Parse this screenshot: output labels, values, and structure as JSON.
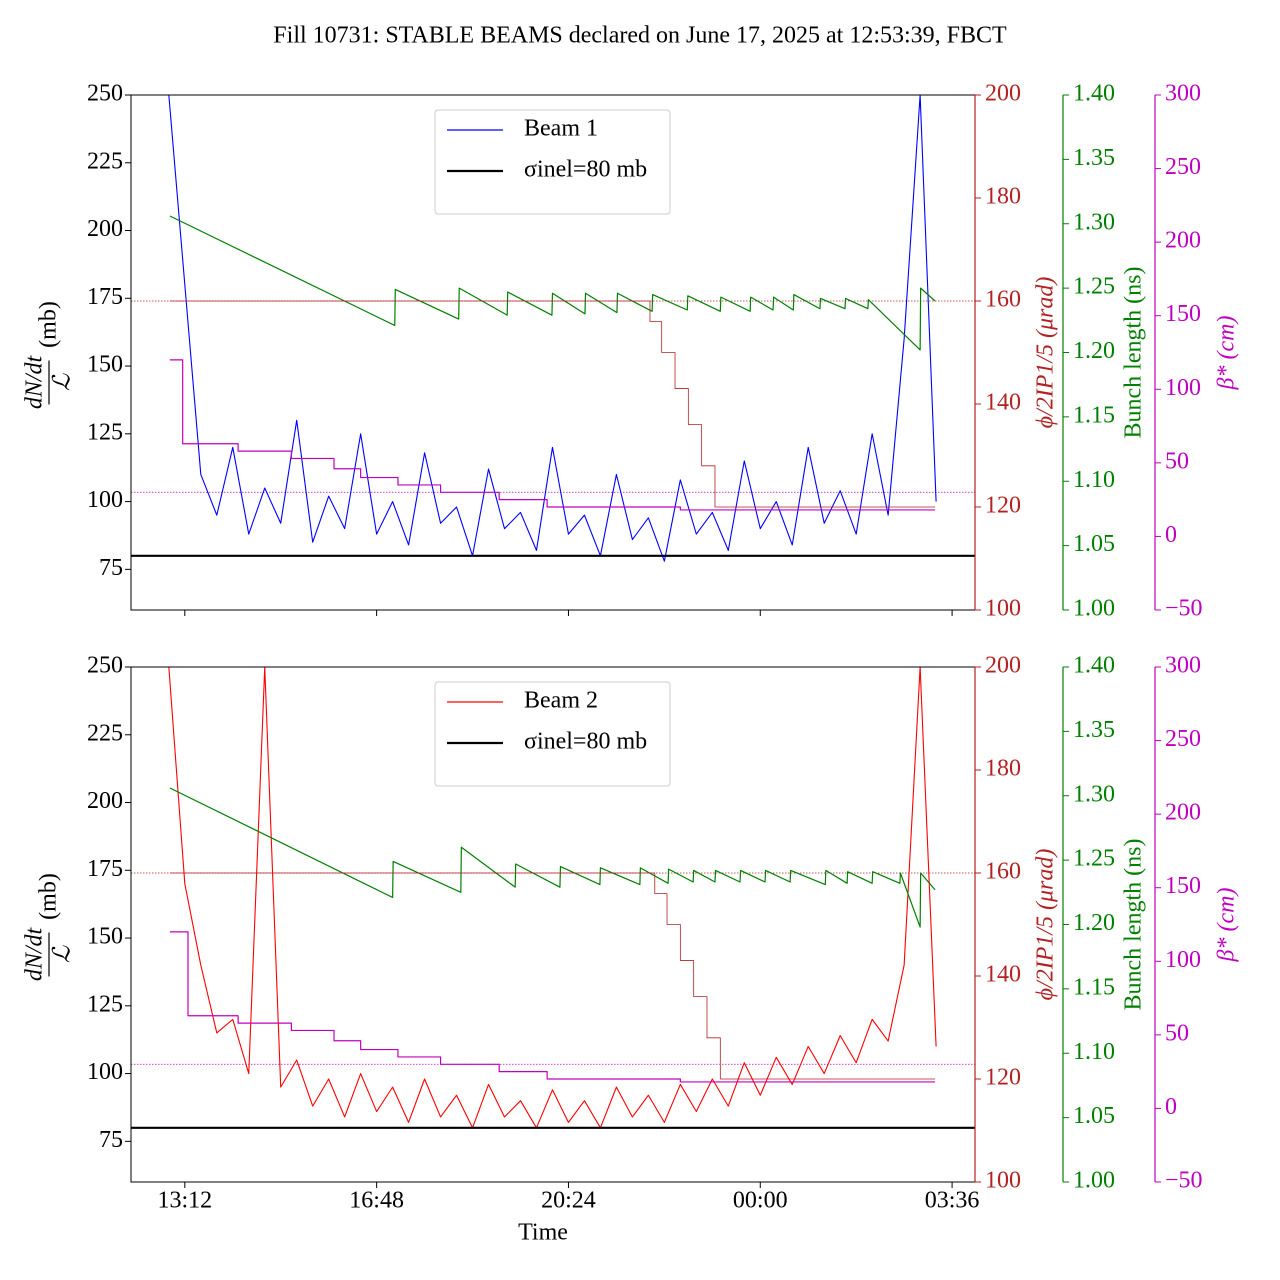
{
  "title": "Fill 10731: STABLE BEAMS declared on June 17, 2025 at 12:53:39, FBCT",
  "chart_data": [
    {
      "type": "line",
      "xlim": [
        12.19,
        28.03
      ],
      "xticks": [
        13.2,
        16.8,
        20.4,
        24,
        27.6
      ],
      "ylim": [
        60,
        250
      ],
      "yticks": [
        75,
        100,
        125,
        150,
        175,
        200,
        225,
        250
      ],
      "ylabel": {
        "numerator": "dN/dt",
        "denominator": "ℒ",
        "unit": "(mb)"
      },
      "y2lim": [
        100,
        200
      ],
      "y2ticks": [
        100,
        120,
        140,
        160,
        180,
        200
      ],
      "y2label": "ϕ/2IP1/5 (μrad)",
      "y2color": "#b22222",
      "y3lim": [
        1.0,
        1.4
      ],
      "y3ticks": [
        {
          "value": 1.0,
          "label": "1.00"
        },
        1.05,
        {
          "value": 1.1,
          "label": "1.10"
        },
        1.15,
        {
          "value": 1.2,
          "label": "1.20"
        },
        1.25,
        {
          "value": 1.3,
          "label": "1.30"
        },
        1.35,
        {
          "value": 1.4,
          "label": "1.40"
        }
      ],
      "y3label": "Bunch length (ns)",
      "y3color": "#008000",
      "y4lim": [
        -50,
        300
      ],
      "y4ticks": [
        {
          "value": -50,
          "label": "−50"
        },
        0,
        50,
        100,
        150,
        200,
        250,
        300
      ],
      "y4label": "β* (cm)",
      "y4color": "#c000c0",
      "legend": "upper center",
      "hlines": [
        {
          "axis": "y2",
          "value": 160,
          "color": "#b22222"
        },
        {
          "axis": "y4",
          "value": 30,
          "color": "#c000c0"
        }
      ],
      "series": [
        {
          "name": "Beam 1",
          "color": "#0000ff",
          "axis": "y",
          "x": [
            12.9,
            13.2,
            13.5,
            13.8,
            14.1,
            14.4,
            14.7,
            15.0,
            15.3,
            15.6,
            15.9,
            16.2,
            16.5,
            16.8,
            17.1,
            17.4,
            17.7,
            18.0,
            18.3,
            18.6,
            18.9,
            19.2,
            19.5,
            19.8,
            20.1,
            20.4,
            20.7,
            21.0,
            21.3,
            21.6,
            21.9,
            22.2,
            22.5,
            22.8,
            23.1,
            23.4,
            23.7,
            24.0,
            24.3,
            24.6,
            24.9,
            25.2,
            25.5,
            25.8,
            26.1,
            26.4,
            26.7,
            27.0,
            27.3
          ],
          "values": [
            250,
            180,
            110,
            95,
            120,
            88,
            105,
            92,
            130,
            85,
            102,
            90,
            125,
            88,
            100,
            84,
            118,
            92,
            98,
            80,
            112,
            90,
            96,
            82,
            120,
            88,
            95,
            80,
            110,
            86,
            94,
            78,
            108,
            88,
            96,
            82,
            115,
            90,
            100,
            84,
            120,
            92,
            104,
            88,
            125,
            95,
            160,
            250,
            100
          ]
        },
        {
          "name": "σinel=80 mb",
          "color": "#000000",
          "axis": "y",
          "hline": 80
        },
        {
          "color": "#008000",
          "axis": "y3",
          "x": [
            12.92,
            17.14,
            17.15,
            18.34,
            18.35,
            19.25,
            19.26,
            20.09,
            20.1,
            20.71,
            20.72,
            21.31,
            21.32,
            21.97,
            21.98,
            22.63,
            22.64,
            23.25,
            23.26,
            23.81,
            23.82,
            24.24,
            24.25,
            24.62,
            24.63,
            25.12,
            25.13,
            25.59,
            25.6,
            26.02,
            26.03,
            27.0,
            27.01,
            27.28
          ],
          "values": [
            1.306,
            1.221,
            1.249,
            1.226,
            1.25,
            1.229,
            1.247,
            1.229,
            1.246,
            1.23,
            1.246,
            1.231,
            1.246,
            1.232,
            1.245,
            1.233,
            1.244,
            1.232,
            1.243,
            1.232,
            1.243,
            1.233,
            1.243,
            1.233,
            1.245,
            1.234,
            1.242,
            1.234,
            1.242,
            1.234,
            1.241,
            1.202,
            1.25,
            1.24
          ]
        },
        {
          "color": "#c000c0",
          "axis": "y4",
          "x": [
            12.92,
            13.16,
            13.16,
            14.2,
            14.2,
            15.2,
            15.2,
            16.0,
            16.0,
            16.5,
            16.5,
            17.2,
            17.2,
            18.0,
            18.0,
            19.1,
            19.1,
            20.0,
            20.0,
            22.5,
            22.5,
            27.28
          ],
          "values": [
            120,
            120,
            63,
            63,
            58,
            58,
            53,
            53,
            46,
            46,
            40,
            40,
            35,
            35,
            30,
            30,
            25,
            25,
            20,
            20,
            18,
            18
          ]
        },
        {
          "color": "#b22222",
          "axis": "y2",
          "x": [
            12.92,
            21.93,
            21.93,
            22.15,
            22.15,
            22.4,
            22.4,
            22.65,
            22.65,
            22.9,
            22.9,
            23.15,
            23.15,
            27.28
          ],
          "values": [
            160,
            160,
            156,
            156,
            150,
            150,
            143,
            143,
            136,
            136,
            128,
            128,
            120,
            120
          ]
        }
      ]
    },
    {
      "type": "line",
      "xlim": [
        12.19,
        28.03
      ],
      "xticks": [
        {
          "value": 13.2,
          "label": "13:12"
        },
        {
          "value": 16.8,
          "label": "16:48"
        },
        {
          "value": 20.4,
          "label": "20:24"
        },
        {
          "value": 24,
          "label": "00:00"
        },
        {
          "value": 27.6,
          "label": "03:36"
        }
      ],
      "xlabel": "Time",
      "ylim": [
        60,
        250
      ],
      "yticks": [
        75,
        100,
        125,
        150,
        175,
        200,
        225,
        250
      ],
      "ylabel": {
        "numerator": "dN/dt",
        "denominator": "ℒ",
        "unit": "(mb)"
      },
      "y2lim": [
        100,
        200
      ],
      "y2ticks": [
        100,
        120,
        140,
        160,
        180,
        200
      ],
      "y2label": "ϕ/2IP1/5 (μrad)",
      "y2color": "#b22222",
      "y3lim": [
        1.0,
        1.4
      ],
      "y3ticks": [
        {
          "value": 1.0,
          "label": "1.00"
        },
        1.05,
        {
          "value": 1.1,
          "label": "1.10"
        },
        1.15,
        {
          "value": 1.2,
          "label": "1.20"
        },
        1.25,
        {
          "value": 1.3,
          "label": "1.30"
        },
        1.35,
        {
          "value": 1.4,
          "label": "1.40"
        }
      ],
      "y3label": "Bunch length (ns)",
      "y3color": "#008000",
      "y4lim": [
        -50,
        300
      ],
      "y4ticks": [
        {
          "value": -50,
          "label": "−50"
        },
        0,
        50,
        100,
        150,
        200,
        250,
        300
      ],
      "y4label": "β* (cm)",
      "y4color": "#c000c0",
      "legend": "upper center",
      "hlines": [
        {
          "axis": "y2",
          "value": 160,
          "color": "#b22222"
        },
        {
          "axis": "y4",
          "value": 30,
          "color": "#c000c0"
        }
      ],
      "series": [
        {
          "name": "Beam 2",
          "color": "#ff0000",
          "axis": "y",
          "x": [
            12.9,
            13.2,
            13.5,
            13.8,
            14.1,
            14.4,
            14.7,
            15.0,
            15.3,
            15.6,
            15.9,
            16.2,
            16.5,
            16.8,
            17.1,
            17.4,
            17.7,
            18.0,
            18.3,
            18.6,
            18.9,
            19.2,
            19.5,
            19.8,
            20.1,
            20.4,
            20.7,
            21.0,
            21.3,
            21.6,
            21.9,
            22.2,
            22.5,
            22.8,
            23.1,
            23.4,
            23.7,
            24.0,
            24.3,
            24.6,
            24.9,
            25.2,
            25.5,
            25.8,
            26.1,
            26.4,
            26.7,
            27.0,
            27.3
          ],
          "values": [
            250,
            170,
            140,
            115,
            120,
            100,
            250,
            95,
            105,
            88,
            98,
            84,
            100,
            86,
            95,
            82,
            98,
            84,
            92,
            80,
            96,
            84,
            90,
            80,
            94,
            82,
            90,
            80,
            95,
            84,
            92,
            82,
            96,
            86,
            98,
            88,
            104,
            92,
            106,
            96,
            110,
            100,
            114,
            104,
            120,
            112,
            140,
            250,
            110
          ]
        },
        {
          "name": "σinel=80 mb",
          "color": "#000000",
          "axis": "y",
          "hline": 80
        },
        {
          "color": "#008000",
          "axis": "y3",
          "x": [
            12.92,
            17.1,
            17.11,
            18.38,
            18.39,
            19.4,
            19.41,
            20.24,
            20.25,
            20.99,
            21.0,
            21.74,
            21.75,
            22.27,
            22.28,
            22.74,
            22.75,
            23.15,
            23.16,
            23.62,
            23.63,
            24.09,
            24.1,
            24.56,
            24.57,
            25.22,
            25.23,
            25.63,
            25.64,
            26.1,
            26.11,
            26.62,
            26.63,
            27.0,
            27.01,
            27.28
          ],
          "values": [
            1.306,
            1.221,
            1.249,
            1.225,
            1.26,
            1.229,
            1.247,
            1.229,
            1.245,
            1.231,
            1.244,
            1.231,
            1.244,
            1.232,
            1.243,
            1.233,
            1.242,
            1.233,
            1.242,
            1.233,
            1.242,
            1.233,
            1.242,
            1.233,
            1.242,
            1.231,
            1.242,
            1.232,
            1.241,
            1.232,
            1.241,
            1.232,
            1.24,
            1.198,
            1.24,
            1.227
          ]
        },
        {
          "color": "#c000c0",
          "axis": "y4",
          "x": [
            12.92,
            13.26,
            13.26,
            14.2,
            14.2,
            15.2,
            15.2,
            16.0,
            16.0,
            16.5,
            16.5,
            17.2,
            17.2,
            18.0,
            18.0,
            19.1,
            19.1,
            20.0,
            20.0,
            22.5,
            22.5,
            27.28
          ],
          "values": [
            120,
            120,
            63,
            63,
            58,
            58,
            53,
            53,
            46,
            46,
            40,
            40,
            35,
            35,
            30,
            30,
            25,
            25,
            20,
            20,
            18,
            18
          ]
        },
        {
          "color": "#b22222",
          "axis": "y2",
          "x": [
            12.92,
            22.02,
            22.02,
            22.25,
            22.25,
            22.5,
            22.5,
            22.75,
            22.75,
            23.0,
            23.0,
            23.25,
            23.25,
            27.28
          ],
          "values": [
            160,
            160,
            156,
            156,
            150,
            150,
            143,
            143,
            136,
            136,
            128,
            128,
            120,
            120
          ]
        }
      ]
    }
  ]
}
